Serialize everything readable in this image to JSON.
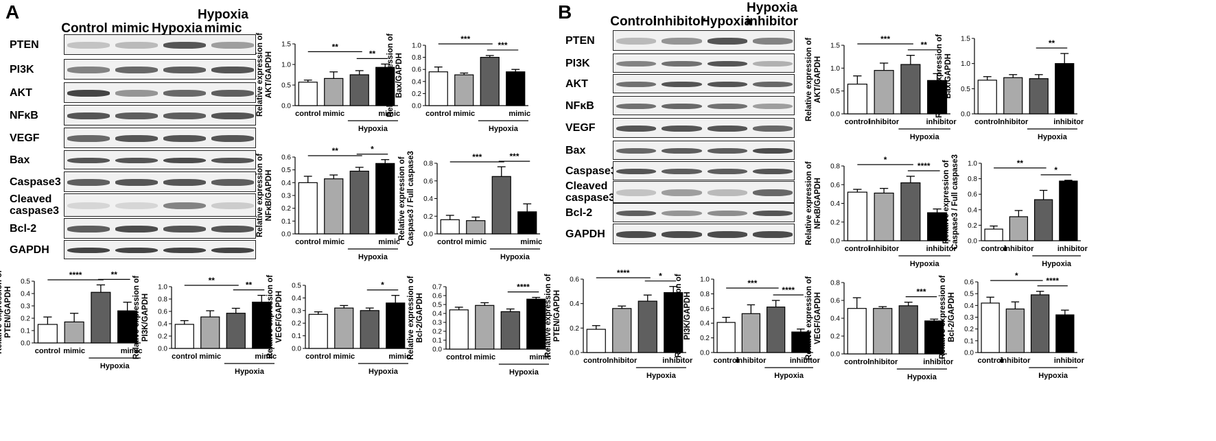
{
  "panel_a": {
    "letter": "A",
    "blot": {
      "column_headers": [
        "Control",
        "mimic",
        "Hypoxia",
        "Hypoxia\nmimic"
      ],
      "rows": [
        "PTEN",
        "PI3K",
        "AKT",
        "NFκB",
        "VEGF",
        "Bax",
        "Caspase3",
        "Cleaved\ncaspase3",
        "Bcl-2",
        "GAPDH"
      ]
    }
  },
  "panel_b": {
    "letter": "B",
    "blot": {
      "column_headers": [
        "Control",
        "inhibitor",
        "Hypoxia",
        "Hypoxia\ninhibitor"
      ],
      "rows": [
        "PTEN",
        "PI3K",
        "AKT",
        "NFκB",
        "VEGF",
        "Bax",
        "Caspase3",
        "Cleaved\ncaspase3",
        "Bcl-2",
        "GAPDH"
      ]
    }
  },
  "colors": {
    "bar_fills": [
      "#ffffff",
      "#aaaaaa",
      "#5f5f5f",
      "#000000"
    ],
    "axis": "#000000"
  },
  "chart_data": [
    {
      "id": "A-AKT",
      "type": "bar",
      "ylabel": "Relative expression of\nAKT/GAPDH",
      "yticks": [
        "0.0",
        "0.5",
        "1.0",
        "1.5"
      ],
      "ylim": [
        0,
        1.5
      ],
      "categories": [
        "control",
        "mimic",
        "",
        "mimic"
      ],
      "group_label": "Hypoxia",
      "values": [
        0.57,
        0.66,
        0.75,
        0.93
      ],
      "errors": [
        0.05,
        0.16,
        0.1,
        0.08
      ],
      "significance": [
        {
          "from": 0,
          "to": 2,
          "label": "**"
        },
        {
          "from": 2,
          "to": 3,
          "label": "**"
        }
      ]
    },
    {
      "id": "A-Bax",
      "type": "bar",
      "ylabel": "Relative expression of\nBax/GAPDH",
      "yticks": [
        "0.0",
        "0.2",
        "0.4",
        "0.6",
        "0.8",
        "1.0"
      ],
      "ylim": [
        0,
        1.0
      ],
      "categories": [
        "control",
        "mimic",
        "",
        "mimic"
      ],
      "group_label": "Hypoxia",
      "values": [
        0.56,
        0.51,
        0.8,
        0.56
      ],
      "errors": [
        0.08,
        0.03,
        0.03,
        0.04
      ],
      "significance": [
        {
          "from": 0,
          "to": 2,
          "label": "***"
        },
        {
          "from": 2,
          "to": 3,
          "label": "***"
        }
      ]
    },
    {
      "id": "A-NFkB",
      "type": "bar",
      "ylabel": "Relative expression of\nNFκB/GAPDH",
      "yticks": [
        "0.0",
        "0.1",
        "0.2",
        "0.3",
        "0.4",
        "0.5",
        "0.6"
      ],
      "ylim": [
        0,
        0.6
      ],
      "categories": [
        "control",
        "mimic",
        "",
        "mimic"
      ],
      "group_label": "Hypoxia",
      "values": [
        0.4,
        0.43,
        0.49,
        0.55
      ],
      "errors": [
        0.05,
        0.03,
        0.03,
        0.03
      ],
      "significance": [
        {
          "from": 0,
          "to": 2,
          "label": "**"
        },
        {
          "from": 2,
          "to": 3,
          "label": "*"
        }
      ]
    },
    {
      "id": "A-Casp3",
      "type": "bar",
      "ylabel": "Relative expression of\nCaspase3 / Full caspase3",
      "yticks": [
        "0.0",
        "0.2",
        "0.4",
        "0.6",
        "0.8"
      ],
      "ylim": [
        0,
        0.8
      ],
      "categories": [
        "control",
        "mimic",
        "",
        "mimic"
      ],
      "group_label": "Hypoxia",
      "values": [
        0.16,
        0.15,
        0.65,
        0.25
      ],
      "errors": [
        0.05,
        0.04,
        0.11,
        0.09
      ],
      "significance": [
        {
          "from": 0,
          "to": 2,
          "label": "***"
        },
        {
          "from": 2,
          "to": 3,
          "label": "***"
        }
      ]
    },
    {
      "id": "A-PTEN",
      "type": "bar",
      "ylabel": "Relative expression of\nPTEN/GAPDH",
      "yticks": [
        "0.0",
        "0.1",
        "0.2",
        "0.3",
        "0.4",
        "0.5"
      ],
      "ylim": [
        0,
        0.5
      ],
      "categories": [
        "control",
        "mimic",
        "",
        "mimic"
      ],
      "group_label": "Hypoxia",
      "values": [
        0.15,
        0.17,
        0.41,
        0.26
      ],
      "errors": [
        0.06,
        0.07,
        0.06,
        0.07
      ],
      "significance": [
        {
          "from": 0,
          "to": 2,
          "label": "****"
        },
        {
          "from": 2,
          "to": 3,
          "label": "**"
        }
      ]
    },
    {
      "id": "A-PI3K",
      "type": "bar",
      "ylabel": "Relative expression of\nPI3K/GAPDH",
      "yticks": [
        "0.0",
        "0.2",
        "0.4",
        "0.6",
        "0.8",
        "1.0"
      ],
      "ylim": [
        0,
        1.0
      ],
      "categories": [
        "control",
        "mimic",
        "",
        "mimic"
      ],
      "group_label": "Hypoxia",
      "values": [
        0.39,
        0.51,
        0.57,
        0.75
      ],
      "errors": [
        0.06,
        0.1,
        0.08,
        0.11
      ],
      "significance": [
        {
          "from": 0,
          "to": 2,
          "label": "**"
        },
        {
          "from": 2,
          "to": 3,
          "label": "**"
        }
      ]
    },
    {
      "id": "A-VEGF",
      "type": "bar",
      "ylabel": "Relative expression of\nVEGF/GAPDH",
      "yticks": [
        "0.0",
        "0.1",
        "0.2",
        "0.3",
        "0.4",
        "0.5"
      ],
      "ylim": [
        0,
        0.5
      ],
      "categories": [
        "control",
        "mimic",
        "",
        "mimic"
      ],
      "group_label": "Hypoxia",
      "values": [
        0.27,
        0.32,
        0.3,
        0.36
      ],
      "errors": [
        0.02,
        0.02,
        0.02,
        0.06
      ],
      "significance": [
        {
          "from": 2,
          "to": 3,
          "label": "*"
        }
      ]
    },
    {
      "id": "A-Bcl2",
      "type": "bar",
      "ylabel": "Relative expression of\nBcl-2/GAPDH",
      "yticks": [
        "0.0",
        "0.1",
        "0.2",
        "0.3",
        "0.4",
        "0.5",
        "0.6",
        "0.7"
      ],
      "ylim": [
        0,
        0.7
      ],
      "categories": [
        "control",
        "mimic",
        "",
        "mimic"
      ],
      "group_label": "Hypoxia",
      "values": [
        0.44,
        0.49,
        0.42,
        0.56
      ],
      "errors": [
        0.03,
        0.03,
        0.03,
        0.02
      ],
      "significance": [
        {
          "from": 2,
          "to": 3,
          "label": "****"
        }
      ]
    },
    {
      "id": "B-AKT",
      "type": "bar",
      "ylabel": "Relative expression of\nAKT/GAPDH",
      "yticks": [
        "0.0",
        "0.5",
        "1.0",
        "1.5"
      ],
      "ylim": [
        0,
        1.5
      ],
      "categories": [
        "control",
        "inhibitor",
        "",
        "inhibitor"
      ],
      "group_label": "Hypoxia",
      "values": [
        0.65,
        0.95,
        1.08,
        0.73
      ],
      "errors": [
        0.18,
        0.16,
        0.2,
        0.15
      ],
      "significance": [
        {
          "from": 0,
          "to": 2,
          "label": "***"
        },
        {
          "from": 2,
          "to": 3,
          "label": "**"
        }
      ]
    },
    {
      "id": "B-Bax",
      "type": "bar",
      "ylabel": "Relative expression of\nBax/GAPDH",
      "yticks": [
        "0.0",
        "0.5",
        "1.0",
        "1.5"
      ],
      "ylim": [
        0,
        1.5
      ],
      "categories": [
        "control",
        "inhibitor",
        "",
        "inhibitor"
      ],
      "group_label": "Hypoxia",
      "values": [
        0.67,
        0.72,
        0.7,
        1.0
      ],
      "errors": [
        0.07,
        0.06,
        0.08,
        0.2
      ],
      "significance": [
        {
          "from": 2,
          "to": 3,
          "label": "**"
        }
      ]
    },
    {
      "id": "B-NFkB",
      "type": "bar",
      "ylabel": "Relative expression of\nNFκB/GAPDH",
      "yticks": [
        "0.0",
        "0.2",
        "0.4",
        "0.6",
        "0.8"
      ],
      "ylim": [
        0,
        0.8
      ],
      "categories": [
        "control",
        "inhibitor",
        "",
        "inhibitor"
      ],
      "group_label": "Hypoxia",
      "values": [
        0.52,
        0.51,
        0.62,
        0.3
      ],
      "errors": [
        0.03,
        0.05,
        0.07,
        0.04
      ],
      "significance": [
        {
          "from": 0,
          "to": 2,
          "label": "*"
        },
        {
          "from": 2,
          "to": 3,
          "label": "****"
        }
      ]
    },
    {
      "id": "B-Casp3",
      "type": "bar",
      "ylabel": "Relative expression of\nCaspase3 / Full caspase3",
      "yticks": [
        "0.0",
        "0.2",
        "0.4",
        "0.6",
        "0.8",
        "1.0"
      ],
      "ylim": [
        0,
        1.0
      ],
      "categories": [
        "control",
        "inhibitor",
        "",
        "inhibitor"
      ],
      "group_label": "Hypoxia",
      "values": [
        0.15,
        0.31,
        0.53,
        0.77
      ],
      "errors": [
        0.04,
        0.08,
        0.12,
        0.01
      ],
      "significance": [
        {
          "from": 0,
          "to": 2,
          "label": "**"
        },
        {
          "from": 2,
          "to": 3,
          "label": "*"
        }
      ]
    },
    {
      "id": "B-PTEN",
      "type": "bar",
      "ylabel": "Relative expression of\nPTEN/GAPDH",
      "yticks": [
        "0.0",
        "0.2",
        "0.4",
        "0.6"
      ],
      "ylim": [
        0,
        0.6
      ],
      "categories": [
        "control",
        "inhibitor",
        "",
        "inhibitor"
      ],
      "group_label": "Hypoxia",
      "values": [
        0.19,
        0.36,
        0.42,
        0.49
      ],
      "errors": [
        0.03,
        0.02,
        0.05,
        0.05
      ],
      "significance": [
        {
          "from": 0,
          "to": 2,
          "label": "****"
        },
        {
          "from": 2,
          "to": 3,
          "label": "*"
        }
      ]
    },
    {
      "id": "B-PI3K",
      "type": "bar",
      "ylabel": "Relative expression of\nPI3K/GAPDH",
      "yticks": [
        "0.0",
        "0.2",
        "0.4",
        "0.6",
        "0.8",
        "1.0"
      ],
      "ylim": [
        0,
        1.0
      ],
      "categories": [
        "control",
        "inhibitor",
        "",
        "inhibitor"
      ],
      "group_label": "Hypoxia",
      "values": [
        0.41,
        0.53,
        0.62,
        0.28
      ],
      "errors": [
        0.07,
        0.12,
        0.09,
        0.04
      ],
      "significance": [
        {
          "from": 0,
          "to": 2,
          "label": "***"
        },
        {
          "from": 2,
          "to": 3,
          "label": "****"
        }
      ]
    },
    {
      "id": "B-VEGF",
      "type": "bar",
      "ylabel": "Relative expression of\nVEGF/GAPDH",
      "yticks": [
        "0.0",
        "0.2",
        "0.4",
        "0.6",
        "0.8"
      ],
      "ylim": [
        0,
        0.8
      ],
      "categories": [
        "control",
        "inhibitor",
        "",
        "inhibitor"
      ],
      "group_label": "Hypoxia",
      "values": [
        0.51,
        0.51,
        0.54,
        0.37
      ],
      "errors": [
        0.12,
        0.02,
        0.04,
        0.02
      ],
      "significance": [
        {
          "from": 2,
          "to": 3,
          "label": "***"
        }
      ]
    },
    {
      "id": "B-Bcl2",
      "type": "bar",
      "ylabel": "Relative expression of\nBcl-2/GAPDH",
      "yticks": [
        "0.0",
        "0.1",
        "0.2",
        "0.3",
        "0.4",
        "0.5",
        "0.6"
      ],
      "ylim": [
        0,
        0.6
      ],
      "categories": [
        "control",
        "inhibitor",
        "",
        "inhibitor"
      ],
      "group_label": "Hypoxia",
      "values": [
        0.42,
        0.37,
        0.49,
        0.32
      ],
      "errors": [
        0.05,
        0.06,
        0.03,
        0.04
      ],
      "significance": [
        {
          "from": 0,
          "to": 2,
          "label": "*"
        },
        {
          "from": 2,
          "to": 3,
          "label": "****"
        }
      ]
    }
  ]
}
